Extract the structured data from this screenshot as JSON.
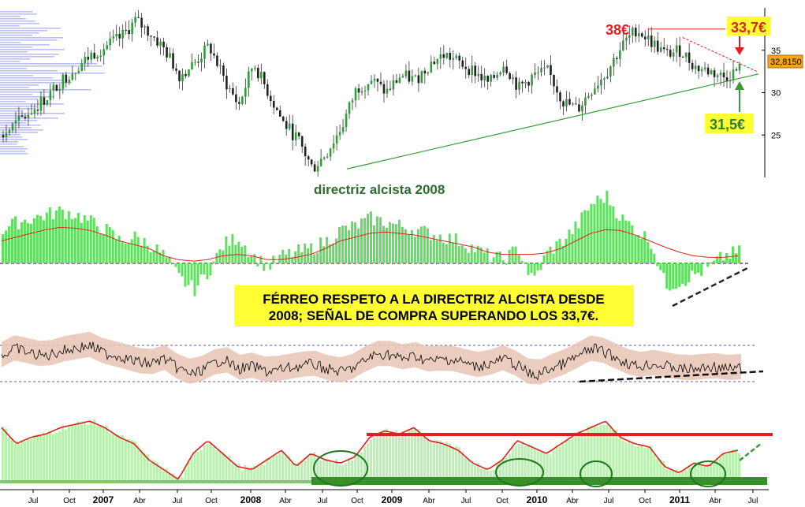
{
  "chart_data": {
    "type": "composite-technical",
    "panels": [
      {
        "name": "price",
        "type": "candlestick",
        "ylim": [
          20,
          40
        ],
        "yticks": [
          25,
          30,
          35
        ],
        "last_price_label": "32,8150",
        "volume_profile": true,
        "series_close": [
          25,
          26.5,
          28,
          29.5,
          31.5,
          33,
          34.5,
          35.5,
          36.5,
          38.5,
          37,
          35,
          32,
          33.5,
          35.5,
          31.5,
          28.5,
          33.5,
          30,
          26.5,
          24.5,
          21,
          23,
          26,
          30.5,
          31.5,
          30,
          32,
          31.5,
          33.5,
          34.5,
          33.5,
          32.5,
          31,
          33.5,
          30.5,
          32,
          32.5,
          29,
          28,
          30.5,
          32.5,
          35.5,
          37.5,
          36,
          34.5,
          35,
          33,
          32.5,
          31.8,
          32.8
        ],
        "annotations": [
          {
            "text": "38€",
            "color": "#e02020"
          },
          {
            "text": "33,7€",
            "color": "#e02020",
            "box": "#ffff33"
          },
          {
            "text": "31,5€",
            "color": "#2e7d32",
            "box": "#ffff33"
          },
          {
            "text": "directriz alcista 2008",
            "color": "#2e7d32"
          }
        ]
      },
      {
        "name": "oscillator",
        "type": "histogram",
        "values": [
          0.45,
          0.55,
          0.6,
          0.65,
          0.7,
          0.65,
          0.55,
          0.45,
          0.3,
          0.35,
          0.25,
          0.1,
          -0.2,
          -0.35,
          -0.1,
          0.25,
          0.35,
          0.1,
          -0.05,
          0.1,
          0.15,
          0.2,
          0.3,
          0.45,
          0.5,
          0.6,
          0.55,
          0.5,
          0.45,
          0.4,
          0.35,
          0.3,
          0.2,
          0.1,
          0.05,
          0.2,
          -0.25,
          0.15,
          0.3,
          0.5,
          0.8,
          0.9,
          0.6,
          0.45,
          0.3,
          -0.3,
          -0.25,
          -0.15,
          -0.05,
          0.1,
          0.15
        ],
        "avg": [
          0.3,
          0.35,
          0.4,
          0.45,
          0.48,
          0.47,
          0.44,
          0.38,
          0.3,
          0.25,
          0.2,
          0.1,
          0.05,
          0.03,
          0.05,
          0.1,
          0.12,
          0.1,
          0.05,
          0.05,
          0.08,
          0.12,
          0.2,
          0.3,
          0.35,
          0.4,
          0.42,
          0.4,
          0.38,
          0.34,
          0.3,
          0.26,
          0.22,
          0.15,
          0.12,
          0.12,
          0.12,
          0.14,
          0.2,
          0.3,
          0.4,
          0.45,
          0.44,
          0.38,
          0.3,
          0.22,
          0.15,
          0.1,
          0.08,
          0.08,
          0.1
        ]
      },
      {
        "name": "momentum-band",
        "type": "line-with-band",
        "values": [
          0.55,
          0.7,
          0.6,
          0.55,
          0.65,
          0.7,
          0.75,
          0.6,
          0.55,
          0.45,
          0.4,
          0.5,
          0.3,
          0.2,
          0.35,
          0.5,
          0.3,
          0.35,
          0.25,
          0.3,
          0.35,
          0.4,
          0.3,
          0.25,
          0.35,
          0.55,
          0.6,
          0.5,
          0.55,
          0.45,
          0.5,
          0.45,
          0.35,
          0.4,
          0.5,
          0.35,
          0.15,
          0.3,
          0.4,
          0.55,
          0.7,
          0.6,
          0.45,
          0.35,
          0.4,
          0.35,
          0.3,
          0.3,
          0.35,
          0.3,
          0.32
        ]
      },
      {
        "name": "rsi-like",
        "type": "area",
        "values": [
          0.85,
          0.6,
          0.7,
          0.75,
          0.85,
          0.9,
          0.95,
          0.85,
          0.7,
          0.6,
          0.35,
          0.2,
          0.05,
          0.45,
          0.65,
          0.45,
          0.25,
          0.2,
          0.35,
          0.5,
          0.25,
          0.45,
          0.35,
          0.3,
          0.4,
          0.7,
          0.8,
          0.75,
          0.85,
          0.65,
          0.6,
          0.5,
          0.3,
          0.2,
          0.35,
          0.65,
          0.55,
          0.45,
          0.6,
          0.75,
          0.85,
          0.95,
          0.7,
          0.6,
          0.55,
          0.25,
          0.15,
          0.3,
          0.25,
          0.45,
          0.5
        ]
      }
    ],
    "x_tick_labels": [
      "Jul",
      "Oct",
      "2007",
      "Abr",
      "Jul",
      "Oct",
      "2008",
      "Abr",
      "Jul",
      "Oct",
      "2009",
      "Abr",
      "Jul",
      "Oct",
      "2010",
      "Abr",
      "Jul",
      "Oct",
      "2011",
      "Abr",
      "Jul"
    ],
    "callout": {
      "line1": "FÉRREO RESPETO A LA DIRECTRIZ ALCISTA DESDE",
      "line2": "2008; SEÑAL DE COMPRA SUPERANDO LOS 33,7€.",
      "box": "#ffff33"
    },
    "colors": {
      "up": "#2e9d3a",
      "bar": "#5ee05e",
      "avg": "#d22",
      "band": "#e8c4b4",
      "trend": "#3a9a3a"
    }
  }
}
